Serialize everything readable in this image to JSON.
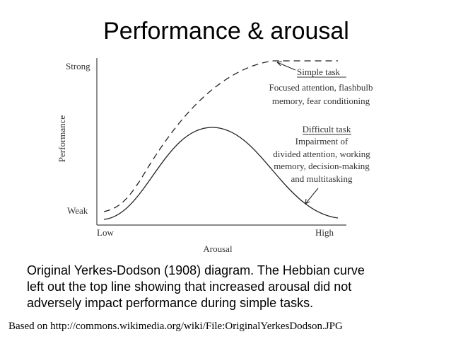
{
  "title": "Performance & arousal",
  "diagram": {
    "y_axis_label": "Performance",
    "y_levels": [
      "Strong",
      "Weak"
    ],
    "x_axis_label": "Arousal",
    "x_levels": [
      "Low",
      "High"
    ],
    "simple_task": {
      "label": "Simple task",
      "lines": [
        "Focused attention, flashbulb",
        "memory, fear conditioning"
      ]
    },
    "difficult_task": {
      "label": "Difficult task",
      "lines": [
        "Impairment of",
        "divided attention, working",
        "memory, decision-making",
        "and multitasking"
      ]
    }
  },
  "caption": [
    "Original Yerkes-Dodson (1908) diagram. The Hebbian curve",
    "left out the top line showing that increased arousal did not",
    "adversely impact performance during simple tasks."
  ],
  "source": "Based on http://commons.wikimedia.org/wiki/File:OriginalYerkesDodson.JPG"
}
